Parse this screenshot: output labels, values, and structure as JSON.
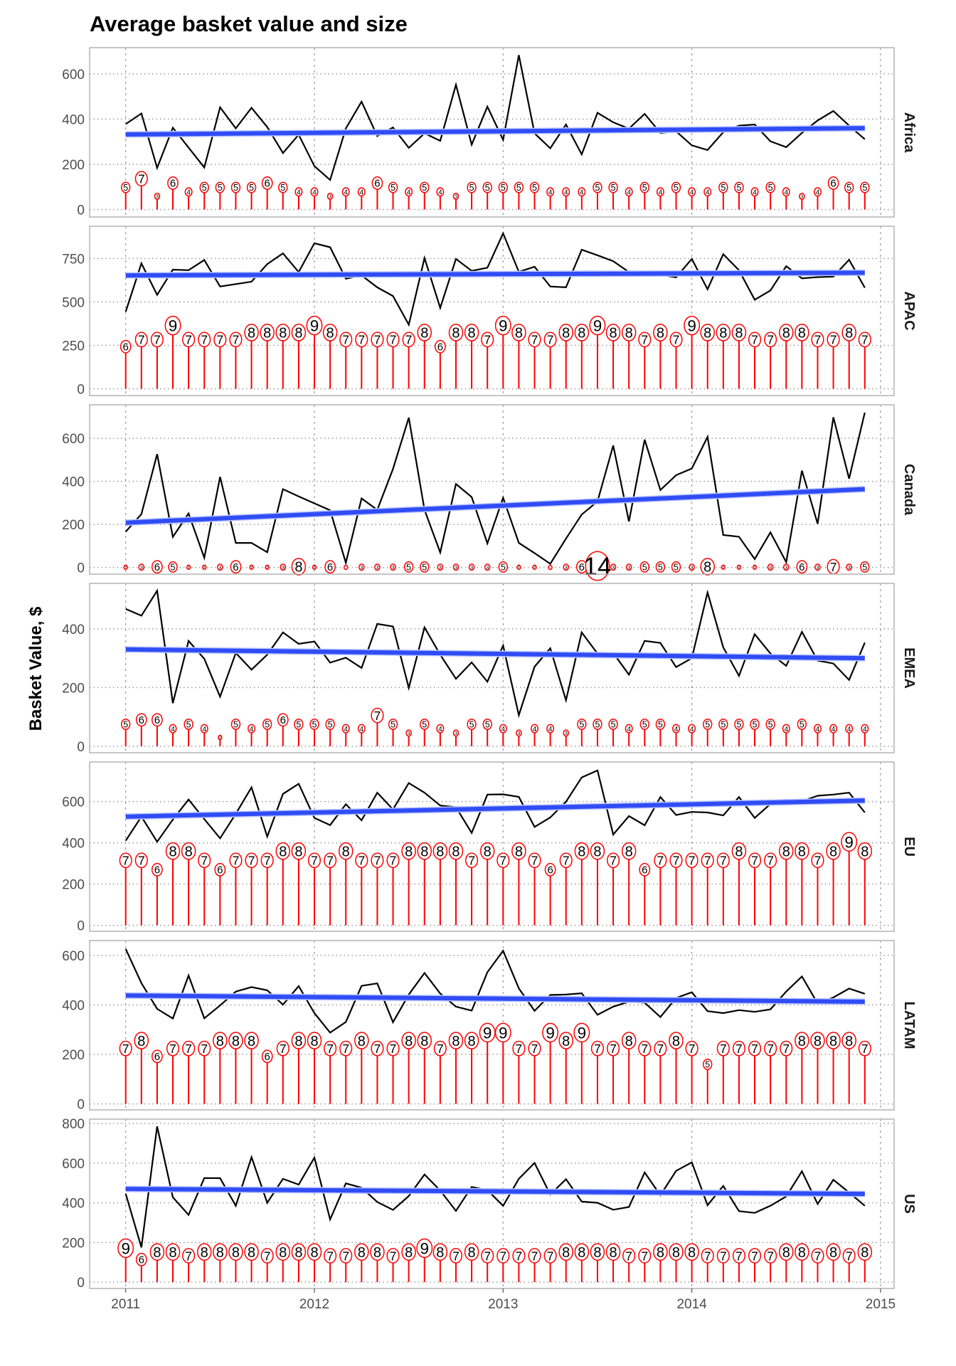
{
  "chart_data": {
    "type": "line",
    "title": "Average basket value and size",
    "xlabel": "",
    "ylabel": "Basket Value, $",
    "x_start": 2011,
    "x_step_months": 1,
    "x_ticks": [
      "2011",
      "2012",
      "2013",
      "2014",
      "2015"
    ],
    "xlim": [
      2010.8,
      2015.1
    ],
    "grid": true,
    "colors": {
      "value_line": "#000000",
      "trend": "#2f4cf5",
      "size_marker": "#ff0000"
    },
    "panels": [
      {
        "name": "Africa",
        "ylim": [
          -33,
          716
        ],
        "y_ticks": [
          0,
          200,
          400,
          600
        ],
        "trend": [
          332,
          360
        ],
        "stem_per_item": 19.5,
        "values": [
          378,
          425,
          184,
          362,
          274,
          186,
          452,
          359,
          450,
          365,
          250,
          331,
          192,
          131,
          359,
          477,
          325,
          363,
          273,
          337,
          304,
          552,
          287,
          455,
          308,
          683,
          337,
          271,
          376,
          244,
          428,
          386,
          358,
          423,
          339,
          346,
          284,
          263,
          342,
          371,
          376,
          302,
          276,
          339,
          394,
          436,
          371,
          311
        ],
        "sizes": [
          5,
          7,
          3,
          6,
          4,
          5,
          5,
          5,
          5,
          6,
          5,
          4,
          4,
          3,
          4,
          4,
          6,
          5,
          4,
          5,
          4,
          3,
          5,
          5,
          5,
          5,
          5,
          4,
          4,
          4,
          5,
          5,
          4,
          5,
          4,
          5,
          4,
          4,
          5,
          5,
          4,
          5,
          4,
          3,
          4,
          6,
          5,
          5
        ]
      },
      {
        "name": "APAC",
        "ylim": [
          -39,
          936
        ],
        "y_ticks": [
          0,
          250,
          500,
          750
        ],
        "trend": [
          653,
          668
        ],
        "stem_per_item": 40.5,
        "values": [
          444,
          722,
          541,
          686,
          683,
          742,
          589,
          603,
          617,
          718,
          780,
          672,
          838,
          815,
          634,
          653,
          584,
          534,
          369,
          753,
          466,
          748,
          679,
          697,
          895,
          674,
          703,
          589,
          584,
          801,
          769,
          735,
          672,
          667,
          656,
          642,
          748,
          573,
          775,
          683,
          513,
          566,
          706,
          636,
          643,
          646,
          743,
          582
        ],
        "sizes": [
          6,
          7,
          7,
          9,
          7,
          7,
          7,
          7,
          8,
          8,
          8,
          8,
          9,
          8,
          7,
          7,
          7,
          7,
          7,
          8,
          6,
          8,
          8,
          7,
          9,
          8,
          7,
          7,
          8,
          8,
          9,
          8,
          8,
          7,
          8,
          7,
          9,
          8,
          8,
          8,
          7,
          7,
          8,
          8,
          7,
          7,
          8,
          7
        ]
      },
      {
        "name": "Canada",
        "ylim": [
          -31,
          756
        ],
        "y_ticks": [
          0,
          200,
          400,
          600
        ],
        "trend": [
          208,
          364
        ],
        "stem_per_item": 0.5,
        "values": [
          166,
          248,
          527,
          142,
          251,
          45,
          421,
          114,
          114,
          71,
          364,
          330,
          298,
          266,
          22,
          321,
          268,
          458,
          696,
          268,
          70,
          388,
          327,
          112,
          324,
          114,
          67,
          17,
          134,
          246,
          307,
          567,
          214,
          594,
          360,
          429,
          460,
          607,
          151,
          143,
          39,
          163,
          25,
          450,
          203,
          698,
          413,
          720
        ],
        "sizes": [
          2,
          3,
          6,
          5,
          2,
          2,
          3,
          6,
          2,
          2,
          3,
          8,
          2,
          6,
          1,
          3,
          3,
          3,
          5,
          5,
          3,
          3,
          3,
          3,
          5,
          2,
          2,
          1,
          3,
          6,
          14,
          3,
          3,
          5,
          5,
          5,
          3,
          8,
          2,
          2,
          2,
          3,
          3,
          6,
          3,
          7,
          3,
          5
        ]
      },
      {
        "name": "EMEA",
        "ylim": [
          -22,
          555
        ],
        "y_ticks": [
          0,
          200,
          400
        ],
        "trend": [
          330,
          300
        ],
        "stem_per_item": 15,
        "values": [
          468,
          445,
          530,
          147,
          359,
          298,
          169,
          318,
          261,
          312,
          388,
          349,
          357,
          285,
          302,
          267,
          417,
          408,
          199,
          405,
          312,
          230,
          286,
          220,
          343,
          106,
          271,
          334,
          157,
          388,
          316,
          318,
          244,
          359,
          352,
          270,
          300,
          524,
          337,
          240,
          382,
          316,
          274,
          390,
          292,
          282,
          226,
          353
        ],
        "sizes": [
          5,
          6,
          6,
          4,
          5,
          4,
          2,
          5,
          4,
          5,
          6,
          5,
          5,
          5,
          4,
          4,
          7,
          5,
          3,
          5,
          4,
          3,
          5,
          5,
          4,
          3,
          4,
          4,
          3,
          5,
          5,
          5,
          4,
          5,
          5,
          4,
          4,
          5,
          5,
          5,
          5,
          5,
          4,
          5,
          4,
          4,
          4,
          4
        ]
      },
      {
        "name": "EU",
        "ylim": [
          -29,
          792
        ],
        "y_ticks": [
          0,
          200,
          400,
          600
        ],
        "trend": [
          527,
          605
        ],
        "stem_per_item": 45,
        "values": [
          410,
          527,
          405,
          513,
          610,
          515,
          422,
          541,
          669,
          430,
          637,
          686,
          521,
          486,
          587,
          509,
          643,
          562,
          690,
          643,
          581,
          573,
          448,
          634,
          635,
          623,
          477,
          523,
          599,
          717,
          751,
          440,
          530,
          485,
          622,
          535,
          550,
          547,
          533,
          622,
          521,
          588,
          608,
          602,
          628,
          634,
          643,
          547
        ],
        "sizes": [
          7,
          7,
          6,
          8,
          8,
          7,
          6,
          7,
          7,
          7,
          8,
          8,
          7,
          7,
          8,
          7,
          7,
          7,
          8,
          8,
          8,
          8,
          7,
          8,
          7,
          8,
          7,
          6,
          7,
          8,
          8,
          7,
          8,
          6,
          7,
          7,
          7,
          7,
          7,
          8,
          7,
          7,
          8,
          8,
          7,
          8,
          9,
          8
        ]
      },
      {
        "name": "LATAM",
        "ylim": [
          -24,
          660
        ],
        "y_ticks": [
          0,
          200,
          400,
          600
        ],
        "trend": [
          438,
          413
        ],
        "stem_per_item": 32,
        "values": [
          626,
          488,
          384,
          345,
          519,
          346,
          398,
          454,
          472,
          459,
          401,
          476,
          367,
          288,
          331,
          477,
          487,
          330,
          442,
          529,
          446,
          393,
          377,
          532,
          619,
          467,
          376,
          440,
          442,
          447,
          360,
          393,
          413,
          409,
          351,
          428,
          451,
          375,
          367,
          379,
          372,
          382,
          454,
          515,
          406,
          430,
          466,
          445
        ],
        "sizes": [
          7,
          8,
          6,
          7,
          7,
          7,
          8,
          8,
          8,
          6,
          7,
          8,
          8,
          7,
          7,
          8,
          7,
          7,
          8,
          8,
          7,
          8,
          8,
          9,
          9,
          7,
          7,
          9,
          8,
          9,
          7,
          7,
          8,
          7,
          7,
          8,
          7,
          5,
          7,
          7,
          7,
          7,
          7,
          8,
          8,
          8,
          8,
          7
        ]
      },
      {
        "name": "US",
        "ylim": [
          -32,
          822
        ],
        "y_ticks": [
          0,
          200,
          400,
          600,
          800
        ],
        "trend": [
          470,
          445
        ],
        "stem_per_item": 19,
        "values": [
          446,
          175,
          785,
          428,
          339,
          525,
          524,
          385,
          630,
          400,
          521,
          492,
          628,
          316,
          498,
          476,
          404,
          364,
          434,
          543,
          462,
          359,
          480,
          464,
          385,
          521,
          601,
          442,
          519,
          406,
          400,
          365,
          379,
          553,
          438,
          561,
          604,
          388,
          485,
          358,
          349,
          385,
          432,
          559,
          394,
          516,
          452,
          385
        ],
        "sizes": [
          9,
          6,
          8,
          8,
          7,
          8,
          8,
          8,
          8,
          7,
          8,
          8,
          8,
          7,
          7,
          8,
          8,
          7,
          8,
          9,
          8,
          7,
          8,
          7,
          7,
          7,
          7,
          7,
          8,
          8,
          8,
          8,
          7,
          7,
          8,
          8,
          8,
          7,
          7,
          7,
          7,
          7,
          8,
          8,
          7,
          8,
          7,
          8
        ]
      }
    ]
  }
}
